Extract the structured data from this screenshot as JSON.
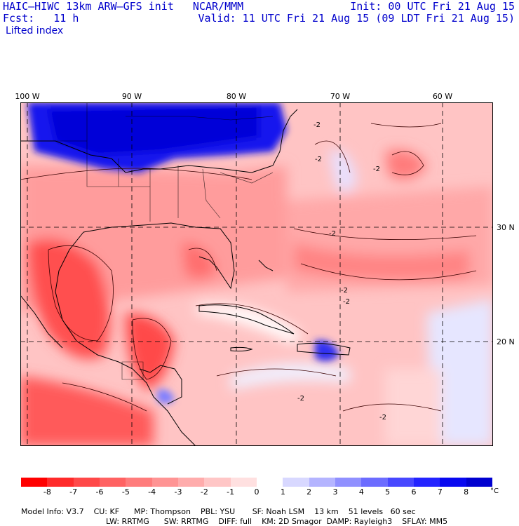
{
  "header": {
    "model_title": "HAIC–HIWC 13km ARW–GFS init   NCAR/MMM",
    "init": "Init: 00 UTC Fri 21 Aug 15",
    "fcst": "Fcst:   11 h",
    "valid": "Valid: 11 UTC Fri 21 Aug 15 (09 LDT Fri 21 Aug 15)",
    "field_name": "Lifted index"
  },
  "map": {
    "longitude_labels": [
      "100 W",
      "90 W",
      "80 W",
      "70 W",
      "60 W"
    ],
    "latitude_labels": [
      "30 N",
      "20 N"
    ],
    "contour_label": "-2",
    "colors": {
      "stable_blue": "#0000e6",
      "unstable_red": "#ff2020",
      "neutral_pink": "#ffb4b4"
    }
  },
  "colorbar": {
    "labels": [
      "-8",
      "-7",
      "-6",
      "-5",
      "-4",
      "-3",
      "-2",
      "-1",
      "0",
      "1",
      "2",
      "3",
      "4",
      "5",
      "6",
      "7",
      "8"
    ],
    "unit": "°C",
    "colors": [
      "#ff0000",
      "#ff2a2a",
      "#ff4848",
      "#ff6262",
      "#ff7c7c",
      "#ff9494",
      "#ffacac",
      "#ffc6c6",
      "#ffe0e0",
      "#ffffff",
      "#d8d8ff",
      "#b4b4ff",
      "#9090ff",
      "#6c6cff",
      "#4848ff",
      "#2424ff",
      "#0808f0",
      "#0000d0"
    ]
  },
  "footer": {
    "line1": [
      "Model Info: V3.7",
      "CU: KF",
      "MP: Thompson",
      "PBL: YSU",
      "SF: Noah LSM",
      "13 km",
      "51 levels",
      "60 sec"
    ],
    "line2": [
      "LW: RRTMG",
      "SW: RRTMG",
      "DIFF: full",
      "KM: 2D Smagor",
      "DAMP: Rayleigh3",
      "SFLAY: MM5"
    ]
  }
}
